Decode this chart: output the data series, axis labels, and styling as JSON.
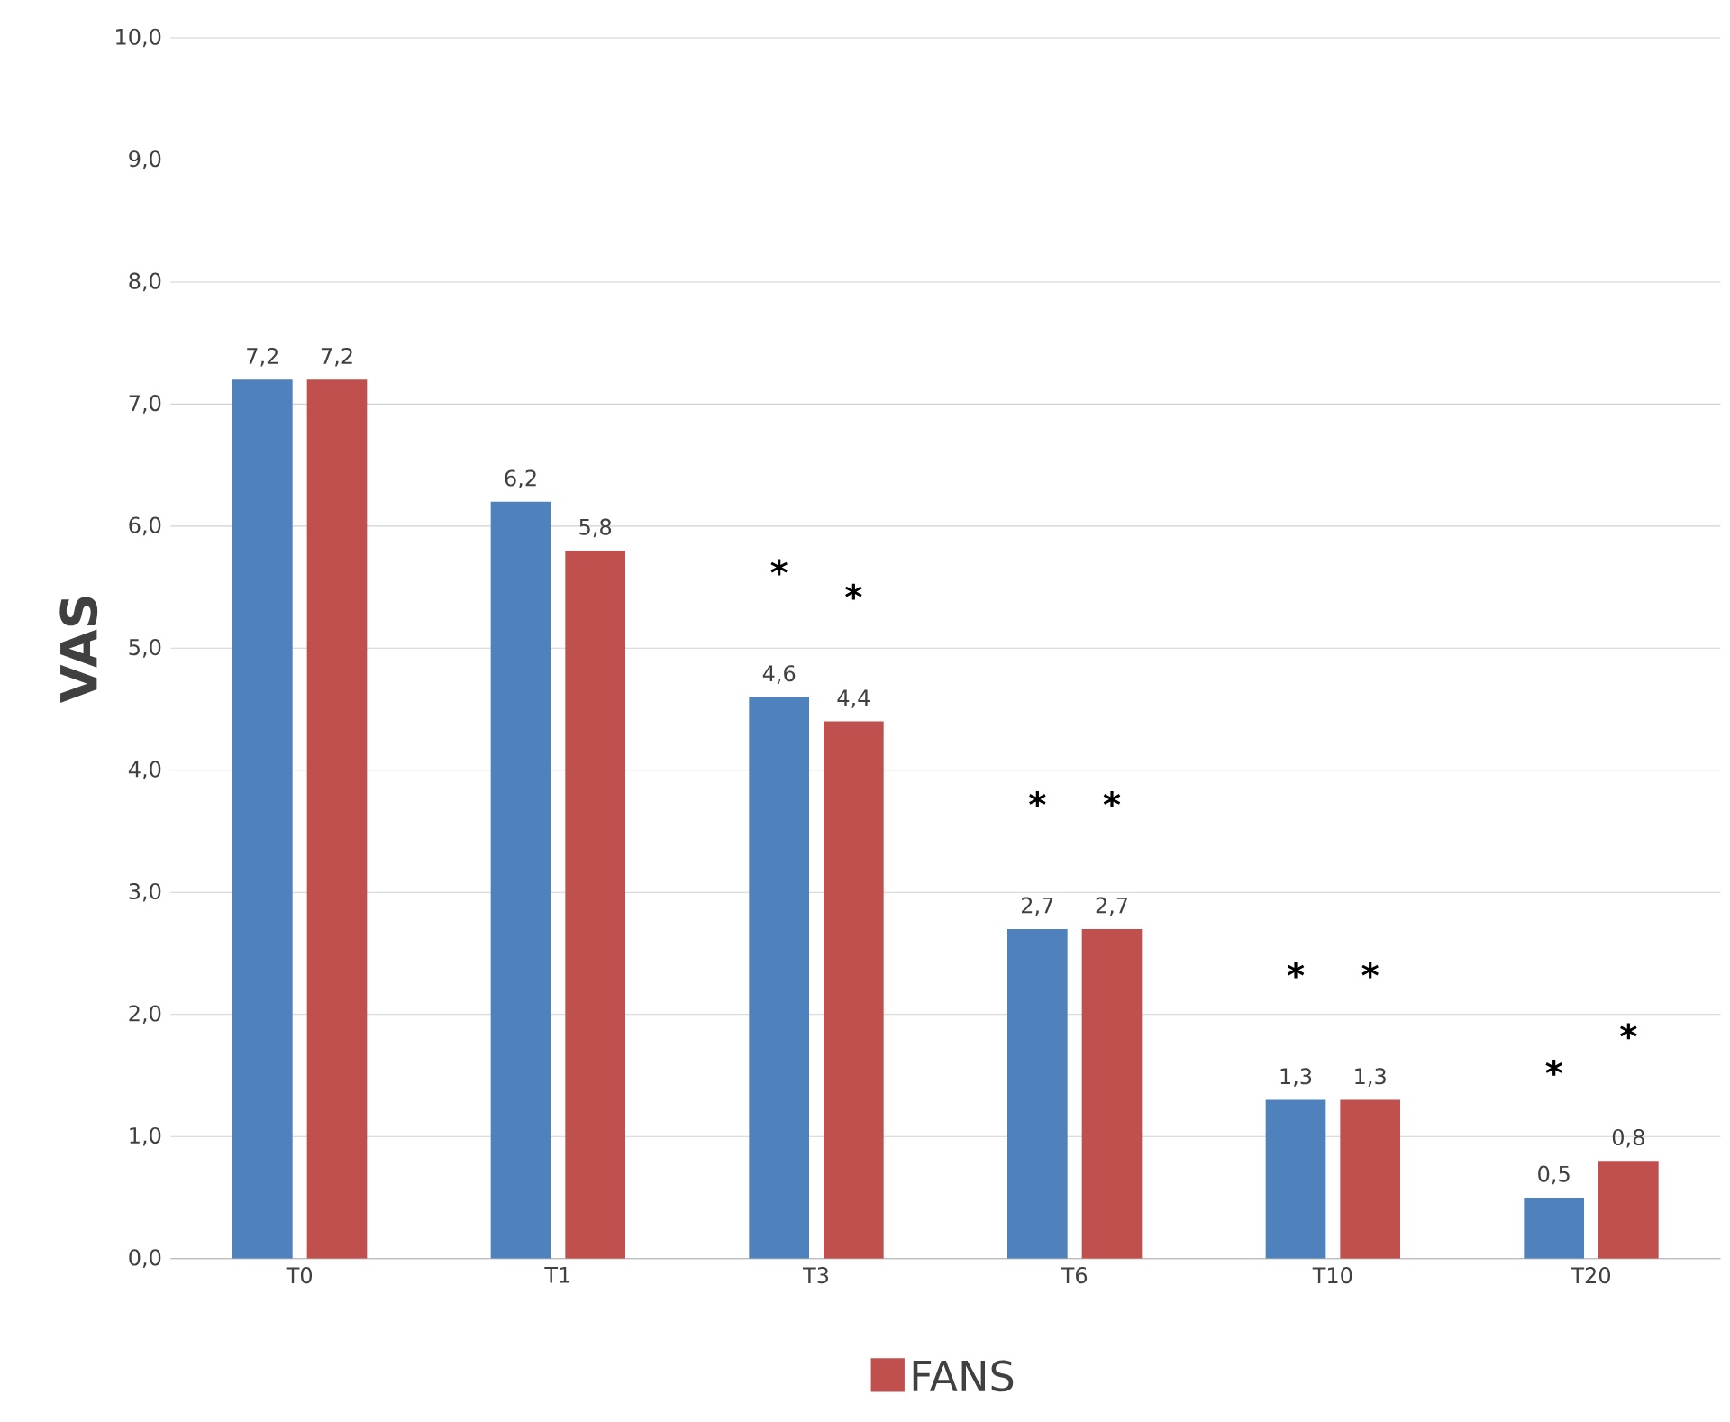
{
  "chart_data": {
    "type": "bar",
    "ylabel": "VAS",
    "categories": [
      "T0",
      "T1",
      "T3",
      "T6",
      "T10",
      "T20"
    ],
    "series": [
      {
        "color": "#4f81bd",
        "values": [
          7.2,
          6.2,
          4.6,
          2.7,
          1.3,
          0.5
        ],
        "value_labels": [
          "7,2",
          "6,2",
          "4,6",
          "2,7",
          "1,3",
          "0,5"
        ]
      },
      {
        "name": "FANS",
        "color": "#c0504d",
        "values": [
          7.2,
          5.8,
          4.4,
          2.7,
          1.3,
          0.8
        ],
        "value_labels": [
          "7,2",
          "5,8",
          "4,4",
          "2,7",
          "1,3",
          "0,8"
        ]
      }
    ],
    "ylim": [
      0,
      10
    ],
    "yticks": [
      {
        "value": 0,
        "label": "0,0"
      },
      {
        "value": 1,
        "label": "1,0"
      },
      {
        "value": 2,
        "label": "2,0"
      },
      {
        "value": 3,
        "label": "3,0"
      },
      {
        "value": 4,
        "label": "4,0"
      },
      {
        "value": 5,
        "label": "5,0"
      },
      {
        "value": 6,
        "label": "6,0"
      },
      {
        "value": 7,
        "label": "7,0"
      },
      {
        "value": 8,
        "label": "8,0"
      },
      {
        "value": 9,
        "label": "9,0"
      },
      {
        "value": 10,
        "label": "10,0"
      }
    ],
    "grid": "y",
    "legend": "bottom",
    "annotations": [
      "*",
      "*",
      "*",
      "*",
      "*",
      "*",
      "*",
      "*"
    ]
  }
}
